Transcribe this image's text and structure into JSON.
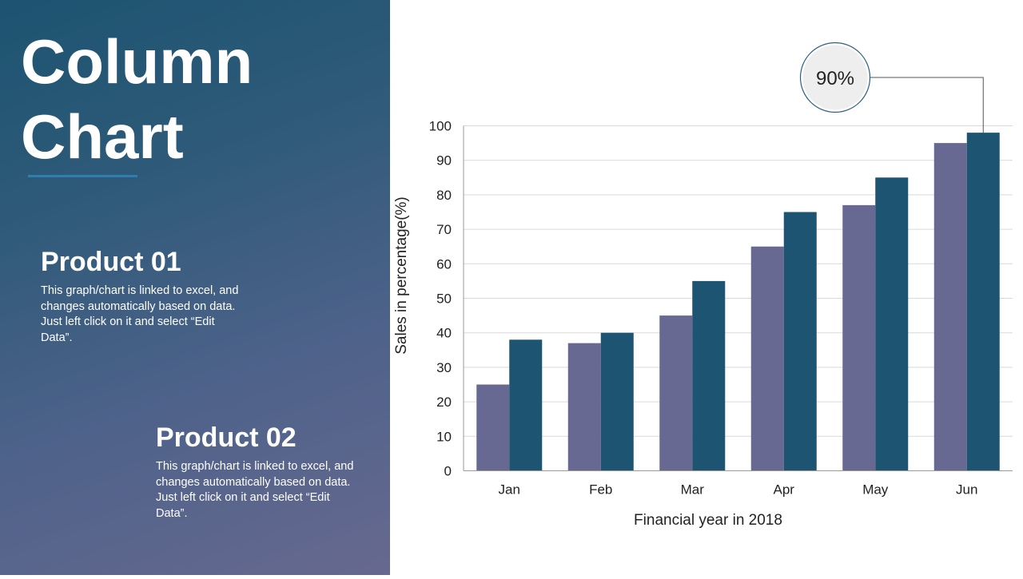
{
  "slide": {
    "title_line1": "Column",
    "title_line2": "Chart"
  },
  "products": [
    {
      "heading": "Product 01",
      "description": "This graph/chart is linked to excel, and changes automatically based on data. Just left click on it and select “Edit Data”."
    },
    {
      "heading": "Product 02",
      "description": "This graph/chart is linked to excel, and changes automatically based on data. Just left click on it and select “Edit Data”."
    }
  ],
  "callout": {
    "label": "90%"
  },
  "colors": {
    "series1": "#676992",
    "series2": "#1d5471",
    "grid": "#d9d9d9",
    "axis": "#9a9a9a",
    "callout_border": "#2a5f85"
  },
  "chart_data": {
    "type": "bar",
    "title": "",
    "xlabel": "Financial year in 2018",
    "ylabel": "Sales in percentage(%)",
    "ylim": [
      0,
      100
    ],
    "yticks": [
      0,
      10,
      20,
      30,
      40,
      50,
      60,
      70,
      80,
      90,
      100
    ],
    "categories": [
      "Jan",
      "Feb",
      "Mar",
      "Apr",
      "May",
      "Jun"
    ],
    "series": [
      {
        "name": "Product 01",
        "values": [
          25,
          37,
          45,
          65,
          77,
          95
        ]
      },
      {
        "name": "Product 02",
        "values": [
          38,
          40,
          55,
          75,
          85,
          98
        ]
      }
    ],
    "grid": true
  }
}
